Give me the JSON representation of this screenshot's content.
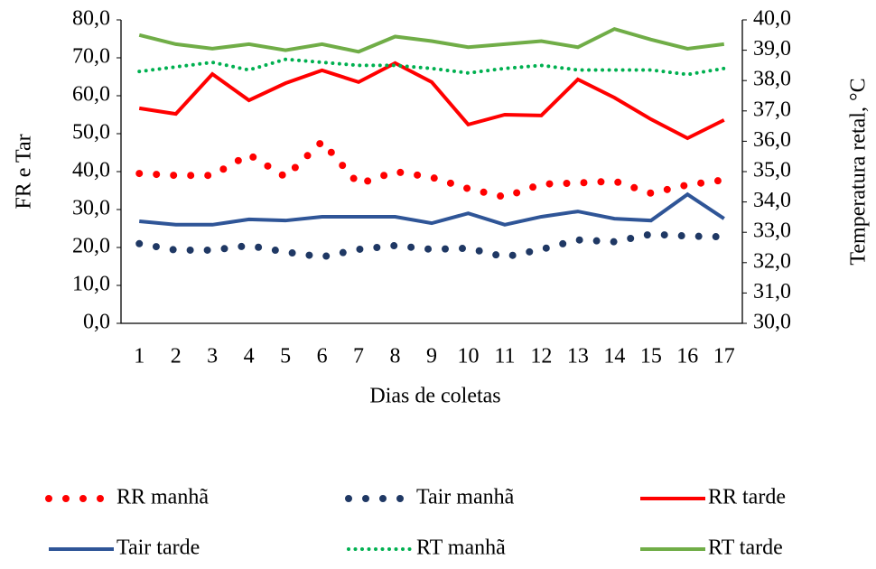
{
  "chart_data": {
    "type": "line",
    "xlabel": "Dias de coletas",
    "ylabel": "FR e Tar",
    "y2label": "Temperatura retal, °C",
    "categories": [
      "1",
      "2",
      "3",
      "4",
      "5",
      "6",
      "7",
      "8",
      "9",
      "10",
      "11",
      "12",
      "13",
      "14",
      "15",
      "16",
      "17"
    ],
    "ylim": [
      0,
      80
    ],
    "yticks": [
      {
        "value": 0,
        "label": "0,0"
      },
      {
        "value": 10,
        "label": "10,0"
      },
      {
        "value": 20,
        "label": "20,0"
      },
      {
        "value": 30,
        "label": "30,0"
      },
      {
        "value": 40,
        "label": "40,0"
      },
      {
        "value": 50,
        "label": "50,0"
      },
      {
        "value": 60,
        "label": "60,0"
      },
      {
        "value": 70,
        "label": "70,0"
      },
      {
        "value": 80,
        "label": "80,0"
      }
    ],
    "y2lim": [
      30,
      40
    ],
    "y2ticks": [
      {
        "value": 30,
        "label": "30,0"
      },
      {
        "value": 31,
        "label": "31,0"
      },
      {
        "value": 32,
        "label": "32,0"
      },
      {
        "value": 33,
        "label": "33,0"
      },
      {
        "value": 34,
        "label": "34,0"
      },
      {
        "value": 35,
        "label": "35,0"
      },
      {
        "value": 36,
        "label": "36,0"
      },
      {
        "value": 37,
        "label": "37,0"
      },
      {
        "value": 38,
        "label": "38,0"
      },
      {
        "value": 39,
        "label": "39,0"
      },
      {
        "value": 40,
        "label": "40,0"
      }
    ],
    "legend": "bottom",
    "series": [
      {
        "name": "RR manhã",
        "color": "#ff0000",
        "line_style": "dotted",
        "values": [
          39.5,
          39,
          39,
          44.5,
          38.6,
          47.9,
          36.7,
          40,
          38.5,
          35.5,
          33.3,
          36.7,
          37,
          37.5,
          34.3,
          36.5,
          37.8
        ]
      },
      {
        "name": "Tair manhã",
        "color": "#1f3864",
        "line_style": "dotted",
        "values": [
          21,
          19.3,
          19.3,
          20.5,
          18.8,
          17.5,
          19.5,
          20.5,
          19.5,
          19.8,
          17.5,
          19.5,
          22,
          21.5,
          23.5,
          23,
          22.8
        ]
      },
      {
        "name": "RR  tarde",
        "color": "#ff0000",
        "line_style": "solid",
        "values": [
          56.7,
          55.2,
          65.7,
          58.8,
          63.3,
          66.7,
          63.6,
          68.6,
          63.6,
          52.4,
          55,
          54.8,
          64.3,
          59.5,
          53.8,
          48.8,
          53.6
        ]
      },
      {
        "name": "Tair tarde",
        "color": "#2f5597",
        "line_style": "solid",
        "values": [
          26.9,
          26,
          26,
          27.4,
          27.1,
          28.1,
          28.1,
          28.1,
          26.4,
          29,
          26,
          28.1,
          29.5,
          27.6,
          27.1,
          34,
          27.6
        ]
      },
      {
        "name": "RT manhã",
        "color": "#00b050",
        "line_style": "fine-dotted",
        "axis": "y2",
        "values": [
          38.3,
          38.45,
          38.6,
          38.35,
          38.7,
          38.6,
          38.5,
          38.5,
          38.4,
          38.25,
          38.4,
          38.5,
          38.35,
          38.35,
          38.35,
          38.2,
          38.4
        ]
      },
      {
        "name": "RT  tarde",
        "color": "#70ad47",
        "line_style": "solid",
        "axis": "y2",
        "values": [
          39.5,
          39.2,
          39.05,
          39.2,
          39,
          39.2,
          38.95,
          39.45,
          39.3,
          39.1,
          39.2,
          39.3,
          39.1,
          39.7,
          39.35,
          39.05,
          39.2
        ]
      }
    ]
  }
}
